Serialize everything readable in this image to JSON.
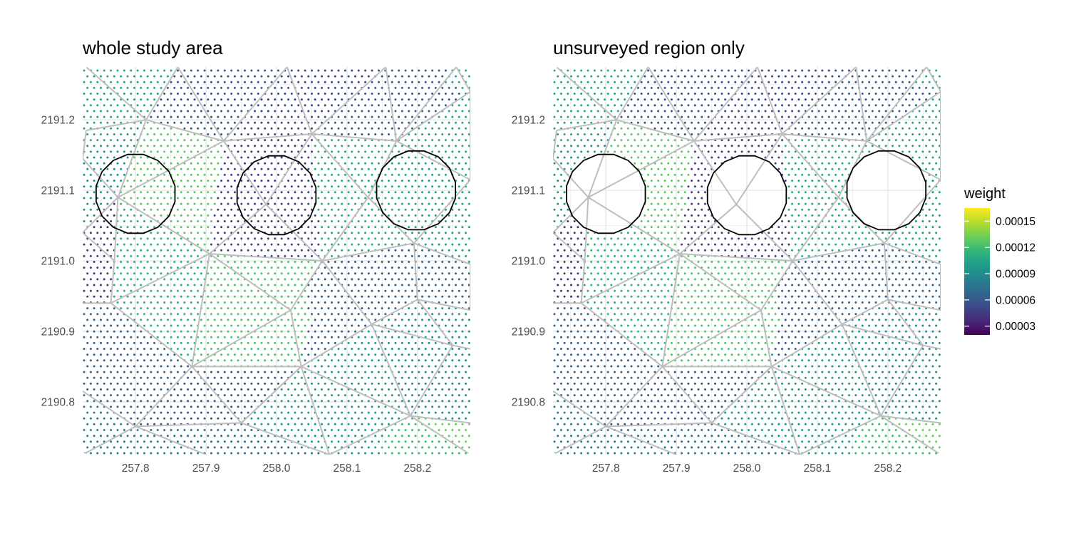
{
  "chart_data": {
    "type": "scatter",
    "description_note": "",
    "panels": [
      {
        "title": "whole study area",
        "x_ticks": [
          257.8,
          257.9,
          258.0,
          258.1,
          258.2
        ],
        "x_tick_labels": [
          "257.8",
          "257.9",
          "258.0",
          "258.1",
          "258.2"
        ],
        "y_ticks": [
          2190.8,
          2190.9,
          2191.0,
          2191.1,
          2191.2
        ],
        "y_tick_labels": [
          "2190.8",
          "2190.9",
          "2191.0",
          "2191.1",
          "2191.2"
        ],
        "xlim": [
          257.725,
          258.275
        ],
        "ylim": [
          2190.725,
          2191.275
        ],
        "circles_masked": false
      },
      {
        "title": "unsurveyed region only",
        "x_ticks": [
          257.8,
          257.9,
          258.0,
          258.1,
          258.2
        ],
        "x_tick_labels": [
          "257.8",
          "257.9",
          "258.0",
          "258.1",
          "258.2"
        ],
        "y_ticks": [
          2190.8,
          2190.9,
          2191.0,
          2191.1,
          2191.2
        ],
        "y_tick_labels": [
          "2190.8",
          "2190.9",
          "2191.0",
          "2191.1",
          "2191.2"
        ],
        "xlim": [
          257.725,
          258.275
        ],
        "ylim": [
          2190.725,
          2191.275
        ],
        "circles_masked": true
      }
    ],
    "circles": [
      {
        "x": 257.8,
        "y": 2191.095,
        "r": 0.057
      },
      {
        "x": 258.0,
        "y": 2191.093,
        "r": 0.057
      },
      {
        "x": 258.198,
        "y": 2191.1,
        "r": 0.057
      }
    ],
    "mesh_nodes": [
      [
        257.73,
        2191.275
      ],
      [
        257.86,
        2191.275
      ],
      [
        258.015,
        2191.275
      ],
      [
        258.155,
        2191.275
      ],
      [
        258.255,
        2191.275
      ],
      [
        257.73,
        2191.185
      ],
      [
        257.815,
        2191.2
      ],
      [
        257.925,
        2191.17
      ],
      [
        258.05,
        2191.18
      ],
      [
        258.17,
        2191.17
      ],
      [
        258.275,
        2191.24
      ],
      [
        257.725,
        2191.145
      ],
      [
        258.275,
        2191.115
      ],
      [
        257.775,
        2191.09
      ],
      [
        257.985,
        2191.08
      ],
      [
        258.13,
        2191.09
      ],
      [
        257.725,
        2191.04
      ],
      [
        257.77,
        2191.0
      ],
      [
        257.905,
        2191.01
      ],
      [
        258.065,
        2191.0
      ],
      [
        258.195,
        2191.025
      ],
      [
        258.275,
        2190.995
      ],
      [
        257.725,
        2190.94
      ],
      [
        257.765,
        2190.94
      ],
      [
        258.2,
        2190.945
      ],
      [
        258.275,
        2190.93
      ],
      [
        258.135,
        2190.91
      ],
      [
        258.02,
        2190.93
      ],
      [
        257.88,
        2190.85
      ],
      [
        258.035,
        2190.85
      ],
      [
        258.25,
        2190.88
      ],
      [
        258.275,
        2190.875
      ],
      [
        257.725,
        2190.815
      ],
      [
        258.19,
        2190.78
      ],
      [
        258.275,
        2190.77
      ],
      [
        257.8,
        2190.765
      ],
      [
        257.95,
        2190.77
      ],
      [
        257.725,
        2190.725
      ],
      [
        257.9,
        2190.725
      ],
      [
        258.075,
        2190.725
      ],
      [
        258.275,
        2190.725
      ]
    ],
    "mesh_edges": [
      [
        0,
        6
      ],
      [
        1,
        6
      ],
      [
        1,
        7
      ],
      [
        2,
        7
      ],
      [
        2,
        8
      ],
      [
        3,
        8
      ],
      [
        3,
        9
      ],
      [
        4,
        9
      ],
      [
        4,
        10
      ],
      [
        10,
        9
      ],
      [
        9,
        8
      ],
      [
        8,
        7
      ],
      [
        7,
        6
      ],
      [
        6,
        5
      ],
      [
        5,
        11
      ],
      [
        6,
        13
      ],
      [
        7,
        13
      ],
      [
        7,
        14
      ],
      [
        8,
        14
      ],
      [
        8,
        15
      ],
      [
        9,
        15
      ],
      [
        9,
        12
      ],
      [
        10,
        12
      ],
      [
        11,
        13
      ],
      [
        13,
        17
      ],
      [
        13,
        18
      ],
      [
        14,
        18
      ],
      [
        14,
        19
      ],
      [
        15,
        19
      ],
      [
        15,
        20
      ],
      [
        12,
        20
      ],
      [
        16,
        17
      ],
      [
        17,
        23
      ],
      [
        13,
        16
      ],
      [
        18,
        19
      ],
      [
        19,
        20
      ],
      [
        20,
        21
      ],
      [
        21,
        25
      ],
      [
        20,
        24
      ],
      [
        24,
        25
      ],
      [
        19,
        27
      ],
      [
        19,
        26
      ],
      [
        26,
        24
      ],
      [
        18,
        27
      ],
      [
        18,
        23
      ],
      [
        22,
        23
      ],
      [
        23,
        28
      ],
      [
        27,
        29
      ],
      [
        26,
        29
      ],
      [
        26,
        30
      ],
      [
        24,
        30
      ],
      [
        30,
        31
      ],
      [
        28,
        29
      ],
      [
        18,
        28
      ],
      [
        27,
        28
      ],
      [
        28,
        35
      ],
      [
        28,
        36
      ],
      [
        29,
        36
      ],
      [
        29,
        33
      ],
      [
        26,
        33
      ],
      [
        30,
        33
      ],
      [
        33,
        34
      ],
      [
        32,
        35
      ],
      [
        35,
        36
      ],
      [
        36,
        29
      ],
      [
        35,
        37
      ],
      [
        35,
        38
      ],
      [
        36,
        39
      ],
      [
        29,
        39
      ],
      [
        33,
        39
      ],
      [
        33,
        40
      ]
    ],
    "weight_zones": [
      {
        "poly": [
          [
            257.725,
            2191.275
          ],
          [
            257.86,
            2191.275
          ],
          [
            257.815,
            2191.2
          ],
          [
            257.73,
            2191.185
          ],
          [
            257.725,
            2191.145
          ]
        ],
        "weight": 0.000105
      },
      {
        "poly": [
          [
            257.86,
            2191.275
          ],
          [
            258.015,
            2191.275
          ],
          [
            257.925,
            2191.17
          ],
          [
            257.815,
            2191.2
          ]
        ],
        "weight": 5.8e-05
      },
      {
        "poly": [
          [
            258.015,
            2191.275
          ],
          [
            258.155,
            2191.275
          ],
          [
            258.05,
            2191.18
          ],
          [
            257.925,
            2191.17
          ]
        ],
        "weight": 5.2e-05
      },
      {
        "poly": [
          [
            258.155,
            2191.275
          ],
          [
            258.275,
            2191.24
          ],
          [
            258.17,
            2191.17
          ],
          [
            258.05,
            2191.18
          ]
        ],
        "weight": 6.2e-05
      },
      {
        "poly": [
          [
            258.275,
            2191.24
          ],
          [
            258.275,
            2191.115
          ],
          [
            258.17,
            2191.17
          ]
        ],
        "weight": 0.000105
      },
      {
        "poly": [
          [
            257.725,
            2191.145
          ],
          [
            257.815,
            2191.2
          ],
          [
            257.775,
            2191.09
          ],
          [
            257.725,
            2191.04
          ]
        ],
        "weight": 9.5e-05
      },
      {
        "poly": [
          [
            257.815,
            2191.2
          ],
          [
            257.925,
            2191.17
          ],
          [
            257.905,
            2191.01
          ],
          [
            257.775,
            2191.09
          ]
        ],
        "weight": 0.000128
      },
      {
        "poly": [
          [
            257.925,
            2191.17
          ],
          [
            258.05,
            2191.18
          ],
          [
            258.065,
            2191.0
          ],
          [
            257.905,
            2191.01
          ]
        ],
        "weight": 4.8e-05
      },
      {
        "poly": [
          [
            258.05,
            2191.18
          ],
          [
            258.17,
            2191.17
          ],
          [
            258.195,
            2191.025
          ],
          [
            258.065,
            2191.0
          ]
        ],
        "weight": 0.000108
      },
      {
        "poly": [
          [
            258.17,
            2191.17
          ],
          [
            258.275,
            2191.115
          ],
          [
            258.275,
            2190.995
          ],
          [
            258.195,
            2191.025
          ]
        ],
        "weight": 0.000102
      },
      {
        "poly": [
          [
            257.725,
            2191.04
          ],
          [
            257.775,
            2191.09
          ],
          [
            257.77,
            2191.0
          ],
          [
            257.765,
            2190.94
          ],
          [
            257.725,
            2190.94
          ]
        ],
        "weight": 4.5e-05
      },
      {
        "poly": [
          [
            257.775,
            2191.09
          ],
          [
            257.905,
            2191.01
          ],
          [
            257.88,
            2190.85
          ],
          [
            257.765,
            2190.94
          ]
        ],
        "weight": 0.000112
      },
      {
        "poly": [
          [
            257.905,
            2191.01
          ],
          [
            258.065,
            2191.0
          ],
          [
            258.02,
            2190.93
          ],
          [
            258.035,
            2190.85
          ],
          [
            257.88,
            2190.85
          ]
        ],
        "weight": 0.000125
      },
      {
        "poly": [
          [
            258.065,
            2191.0
          ],
          [
            258.195,
            2191.025
          ],
          [
            258.135,
            2190.91
          ],
          [
            258.035,
            2190.85
          ]
        ],
        "weight": 6.2e-05
      },
      {
        "poly": [
          [
            258.195,
            2191.025
          ],
          [
            258.275,
            2190.995
          ],
          [
            258.275,
            2190.93
          ],
          [
            258.2,
            2190.945
          ],
          [
            258.135,
            2190.91
          ]
        ],
        "weight": 6.8e-05
      },
      {
        "poly": [
          [
            257.725,
            2190.94
          ],
          [
            257.765,
            2190.94
          ],
          [
            257.88,
            2190.85
          ],
          [
            257.8,
            2190.765
          ],
          [
            257.725,
            2190.815
          ]
        ],
        "weight": 6.5e-05
      },
      {
        "poly": [
          [
            257.88,
            2190.85
          ],
          [
            258.035,
            2190.85
          ],
          [
            257.95,
            2190.77
          ],
          [
            257.8,
            2190.765
          ]
        ],
        "weight": 5.8e-05
      },
      {
        "poly": [
          [
            258.035,
            2190.85
          ],
          [
            258.135,
            2190.91
          ],
          [
            258.19,
            2190.78
          ],
          [
            258.075,
            2190.725
          ],
          [
            257.95,
            2190.77
          ]
        ],
        "weight": 9.8e-05
      },
      {
        "poly": [
          [
            258.135,
            2190.91
          ],
          [
            258.2,
            2190.945
          ],
          [
            258.275,
            2190.93
          ],
          [
            258.275,
            2190.77
          ],
          [
            258.19,
            2190.78
          ]
        ],
        "weight": 9.2e-05
      },
      {
        "poly": [
          [
            258.2,
            2190.945
          ],
          [
            258.275,
            2190.93
          ],
          [
            258.275,
            2190.725
          ],
          [
            258.19,
            2190.78
          ],
          [
            258.25,
            2190.88
          ]
        ],
        "weight": 0.000132
      },
      {
        "poly": [
          [
            257.725,
            2190.815
          ],
          [
            257.8,
            2190.765
          ],
          [
            257.9,
            2190.725
          ],
          [
            257.725,
            2190.725
          ]
        ],
        "weight": 8e-05
      },
      {
        "poly": [
          [
            257.8,
            2190.765
          ],
          [
            257.95,
            2190.77
          ],
          [
            258.075,
            2190.725
          ],
          [
            257.9,
            2190.725
          ]
        ],
        "weight": 7.2e-05
      },
      {
        "poly": [
          [
            258.19,
            2190.78
          ],
          [
            258.275,
            2190.77
          ],
          [
            258.275,
            2190.725
          ]
        ],
        "weight": 0.000118
      }
    ],
    "legend": {
      "title": "weight",
      "labels": [
        "0.00015",
        "0.00012",
        "0.00009",
        "0.00006",
        "0.00003"
      ],
      "values": [
        0.00015,
        0.00012,
        9e-05,
        6e-05,
        3e-05
      ],
      "range": [
        2e-05,
        0.000165
      ],
      "colormap": "viridis",
      "placement": "right"
    },
    "grid": true,
    "colors": {
      "grid": "#ebebeb",
      "mesh": "#bebebe",
      "circle": "#000000",
      "viridis": [
        "#440154",
        "#482878",
        "#3e4989",
        "#31688e",
        "#26828e",
        "#1f9e89",
        "#35b779",
        "#6ece58",
        "#b5de2b",
        "#fde725"
      ]
    }
  }
}
